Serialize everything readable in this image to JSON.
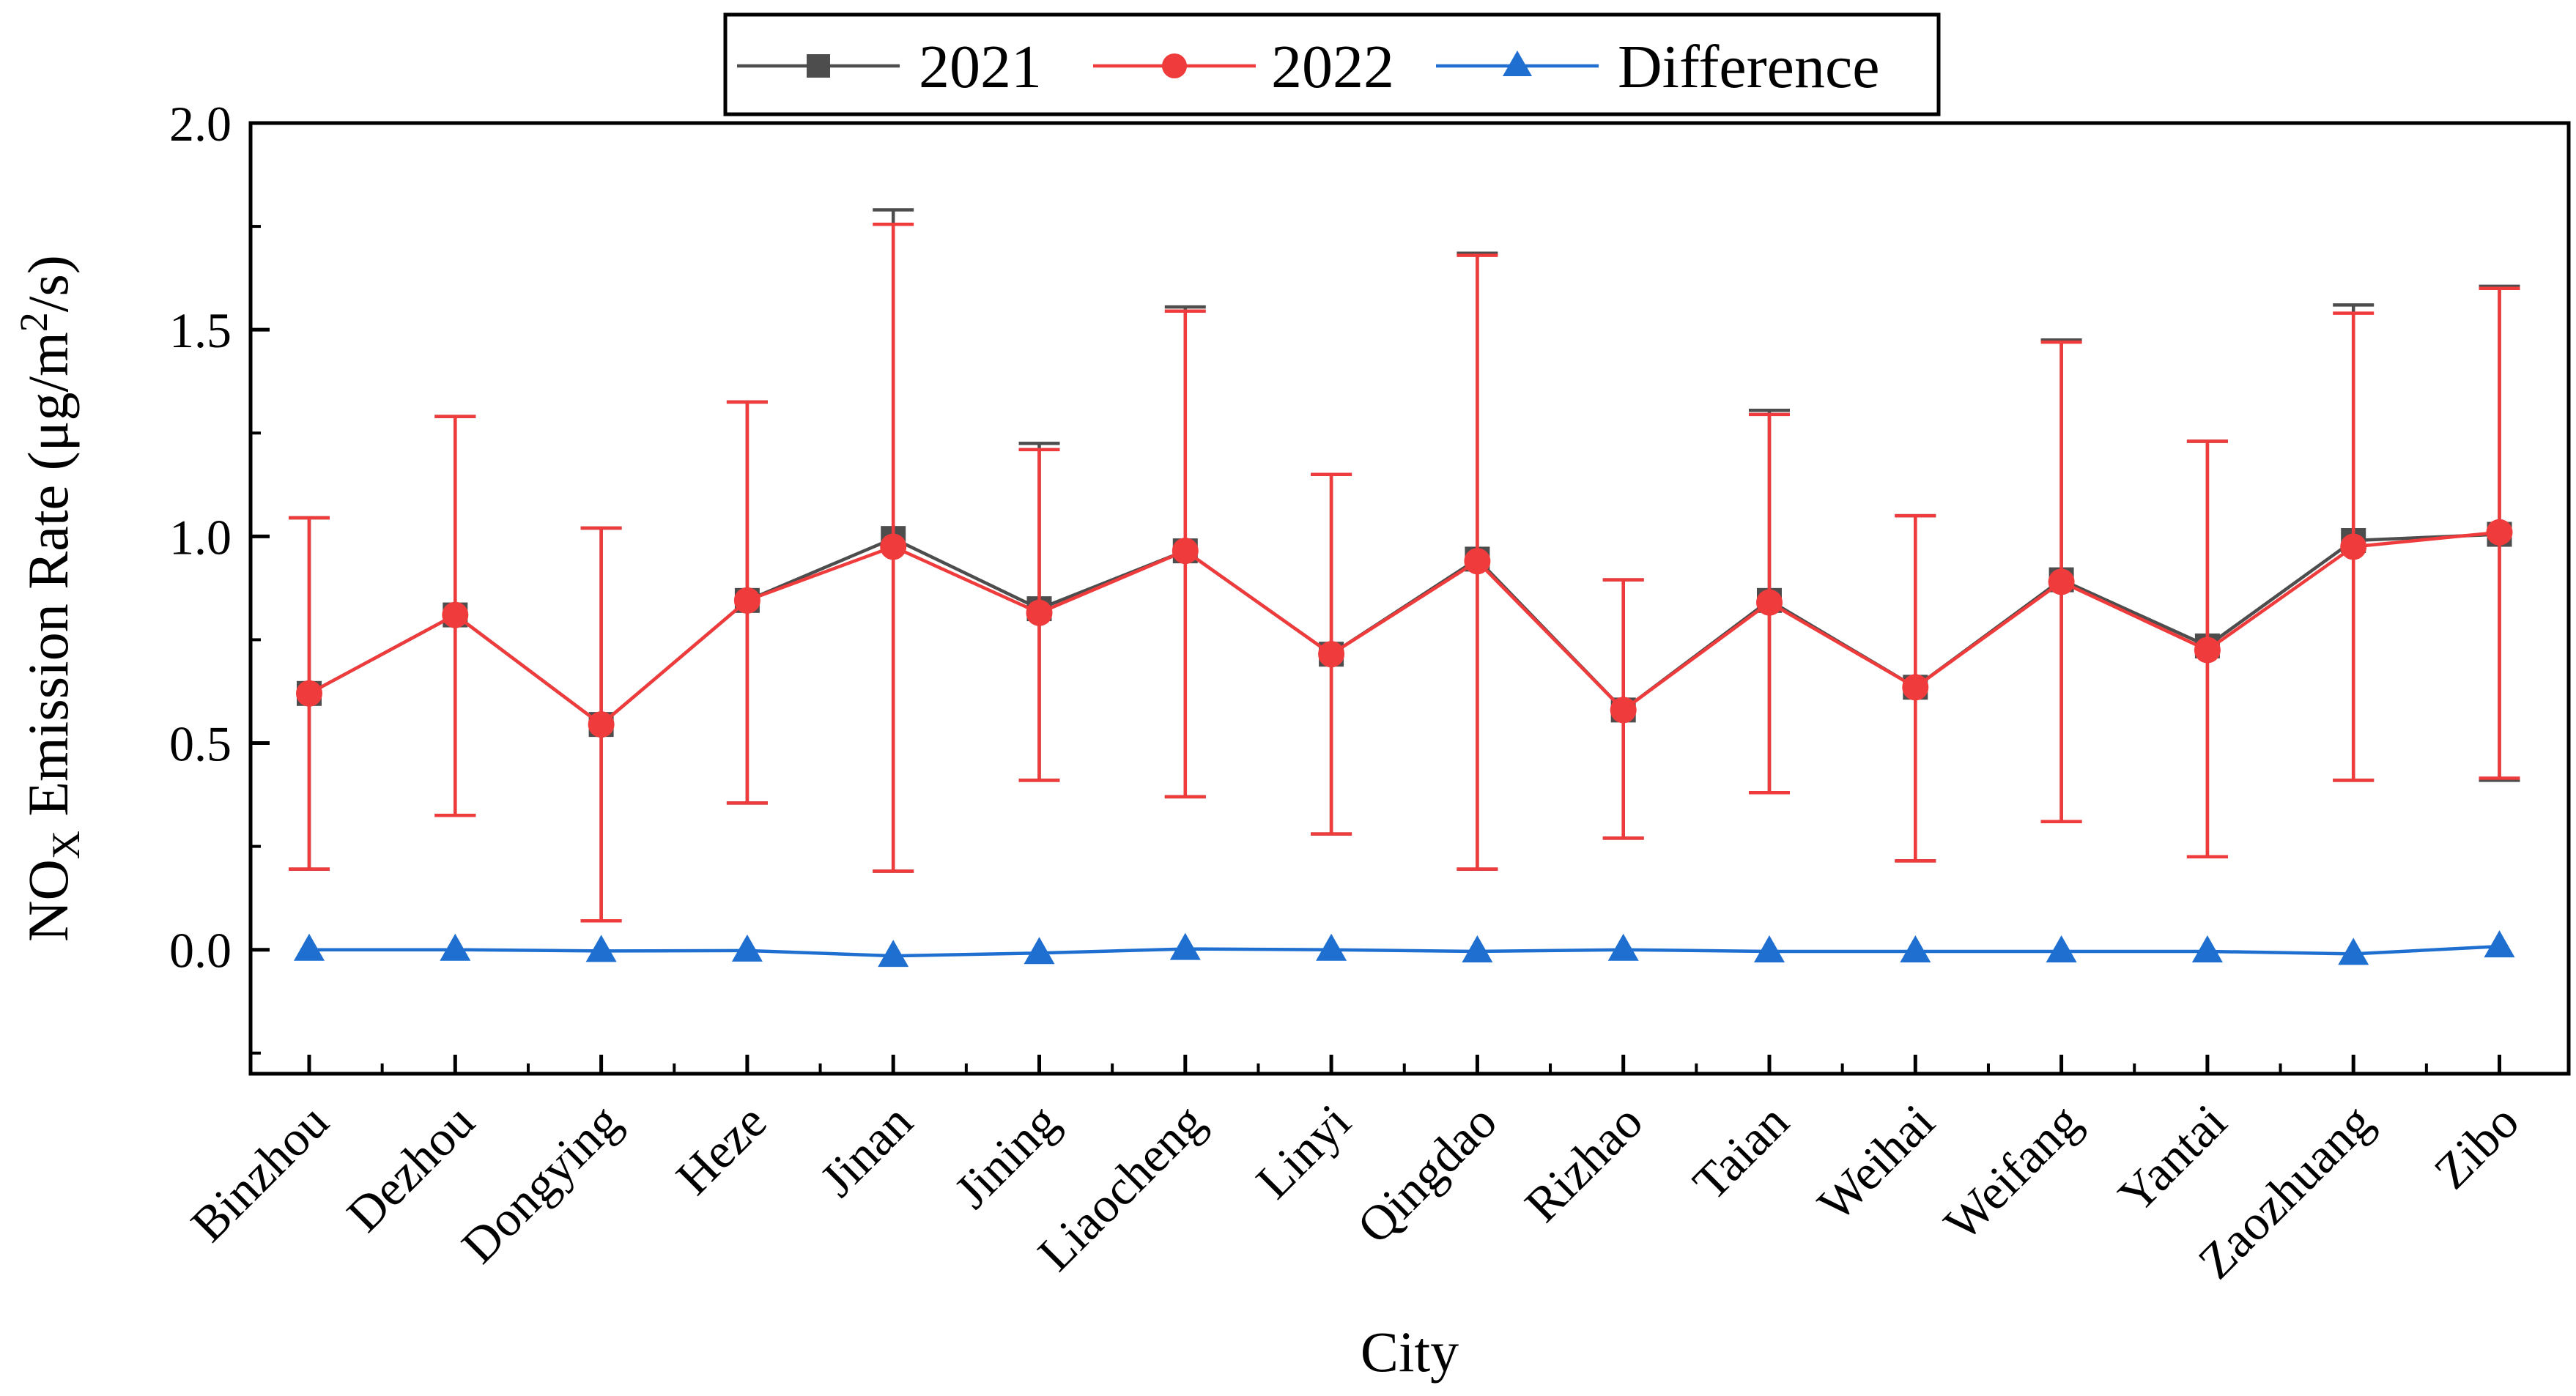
{
  "chart_data": {
    "type": "line",
    "xlabel": "City",
    "ylabel": {
      "prefix": "NO",
      "subscript": "X",
      "middle": " Emission Rate (μg/m",
      "superscript": "2",
      "suffix": "/s)"
    },
    "ylim": [
      -0.3,
      2.0
    ],
    "yticks": [
      "2.0",
      "1.5",
      "1.0",
      "0.5",
      "0.0"
    ],
    "ytick_values": [
      2.0,
      1.5,
      1.0,
      0.5,
      0.0
    ],
    "grid": false,
    "legend_position": "top-center",
    "categories": [
      "Binzhou",
      "Dezhou",
      "Dongying",
      "Heze",
      "Jinan",
      "Jining",
      "Liaocheng",
      "Linyi",
      "Qingdao",
      "Rizhao",
      "Taian",
      "Weihai",
      "Weifang",
      "Yantai",
      "Zaozhuang",
      "Zibo"
    ],
    "series": [
      {
        "name": "2021",
        "color": "#4d4d4d",
        "marker": "square",
        "values": [
          0.62,
          0.81,
          0.545,
          0.845,
          0.995,
          0.825,
          0.965,
          0.715,
          0.945,
          0.58,
          0.845,
          0.635,
          0.895,
          0.735,
          0.99,
          1.005
        ],
        "error_upper": [
          1.045,
          1.29,
          1.02,
          1.325,
          1.79,
          1.225,
          1.555,
          1.15,
          1.685,
          0.895,
          1.305,
          1.05,
          1.475,
          1.23,
          1.56,
          1.605
        ],
        "error_lower": [
          0.195,
          0.325,
          0.07,
          0.355,
          0.19,
          0.41,
          0.37,
          0.28,
          0.195,
          0.27,
          0.38,
          0.215,
          0.31,
          0.225,
          0.41,
          0.41
        ]
      },
      {
        "name": "2022",
        "color": "#ef3b3b",
        "marker": "circle",
        "values": [
          0.62,
          0.81,
          0.545,
          0.845,
          0.975,
          0.815,
          0.965,
          0.715,
          0.94,
          0.58,
          0.84,
          0.635,
          0.89,
          0.725,
          0.975,
          1.01
        ],
        "error_upper": [
          1.045,
          1.29,
          1.02,
          1.325,
          1.755,
          1.21,
          1.545,
          1.15,
          1.68,
          0.895,
          1.295,
          1.05,
          1.47,
          1.23,
          1.54,
          1.6
        ],
        "error_lower": [
          0.195,
          0.325,
          0.07,
          0.355,
          0.19,
          0.41,
          0.37,
          0.28,
          0.195,
          0.27,
          0.38,
          0.215,
          0.31,
          0.225,
          0.41,
          0.415
        ]
      },
      {
        "name": "Difference",
        "color": "#1f6fd1",
        "marker": "triangle",
        "values": [
          0.0,
          0.0,
          -0.003,
          -0.002,
          -0.015,
          -0.008,
          0.002,
          0.0,
          -0.004,
          0.0,
          -0.004,
          -0.004,
          -0.004,
          -0.004,
          -0.01,
          0.008
        ]
      }
    ]
  }
}
